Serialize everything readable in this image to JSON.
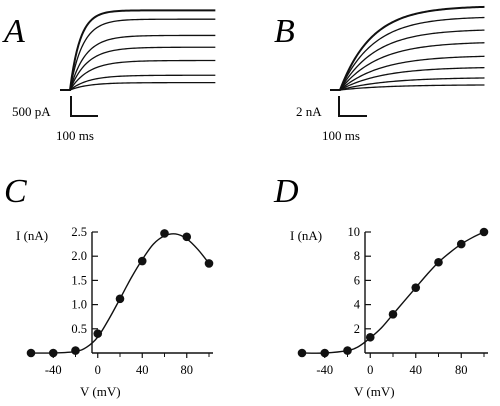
{
  "panels": {
    "A": {
      "letter": "A",
      "scalebar": {
        "y_label": "500 pA",
        "x_label": "100 ms"
      },
      "trace_plateaus": [
        0.25,
        0.5,
        1.0,
        1.45,
        1.85,
        2.4,
        2.7
      ],
      "trace_tau_ms": [
        22,
        22,
        22,
        20,
        18,
        15,
        12
      ]
    },
    "B": {
      "letter": "B",
      "scalebar": {
        "y_label": "2 nA",
        "x_label": "100 ms"
      },
      "trace_plateaus": [
        0.5,
        1.2,
        2.2,
        3.3,
        4.6,
        5.8,
        7.0,
        8.0
      ],
      "trace_tau_ms": [
        55,
        55,
        50,
        48,
        45,
        42,
        40,
        38
      ]
    },
    "C": {
      "letter": "C",
      "xlabel": "V (mV)",
      "ylabel": "I (nA)"
    },
    "D": {
      "letter": "D",
      "xlabel": "V (mV)",
      "ylabel": "I (nA)"
    }
  },
  "chart_data": [
    {
      "panel": "C",
      "type": "scatter",
      "xlabel": "V (mV)",
      "ylabel": "I (nA)",
      "xlim": [
        -60,
        100
      ],
      "ylim": [
        0,
        2.5
      ],
      "xticks": [
        "-40",
        "0",
        "40",
        "80"
      ],
      "xtick_values": [
        -40,
        0,
        40,
        80
      ],
      "yticks": [
        "0.5",
        "1.0",
        "1.5",
        "2.0",
        "2.5"
      ],
      "ytick_values": [
        0.5,
        1.0,
        1.5,
        2.0,
        2.5
      ],
      "x": [
        -60,
        -40,
        -20,
        0,
        20,
        40,
        60,
        80,
        100
      ],
      "y": [
        0.0,
        0.0,
        0.05,
        0.4,
        1.12,
        1.9,
        2.47,
        2.4,
        1.85
      ],
      "fit": {
        "x": [
          -60,
          -40,
          -20,
          -10,
          0,
          10,
          20,
          30,
          40,
          50,
          60,
          70,
          80,
          90,
          100
        ],
        "y": [
          0,
          0,
          0.03,
          0.12,
          0.33,
          0.7,
          1.12,
          1.55,
          1.93,
          2.25,
          2.42,
          2.46,
          2.36,
          2.14,
          1.85
        ]
      }
    },
    {
      "panel": "D",
      "type": "scatter",
      "xlabel": "V (mV)",
      "ylabel": "I (nA)",
      "xlim": [
        -60,
        100
      ],
      "ylim": [
        0,
        10
      ],
      "xticks": [
        "-40",
        "0",
        "40",
        "80"
      ],
      "xtick_values": [
        -40,
        0,
        40,
        80
      ],
      "yticks": [
        "2",
        "4",
        "6",
        "8",
        "10"
      ],
      "ytick_values": [
        2,
        4,
        6,
        8,
        10
      ],
      "x": [
        -60,
        -40,
        -20,
        0,
        20,
        40,
        60,
        80,
        100
      ],
      "y": [
        0.0,
        0.0,
        0.2,
        1.3,
        3.2,
        5.4,
        7.5,
        9.0,
        10.0
      ],
      "fit": {
        "x": [
          -60,
          -40,
          -20,
          -10,
          0,
          10,
          20,
          30,
          40,
          50,
          60,
          70,
          80,
          90,
          100
        ],
        "y": [
          0,
          0,
          0.2,
          0.55,
          1.25,
          2.1,
          3.2,
          4.3,
          5.4,
          6.5,
          7.5,
          8.3,
          9.0,
          9.55,
          10.0
        ]
      }
    }
  ]
}
